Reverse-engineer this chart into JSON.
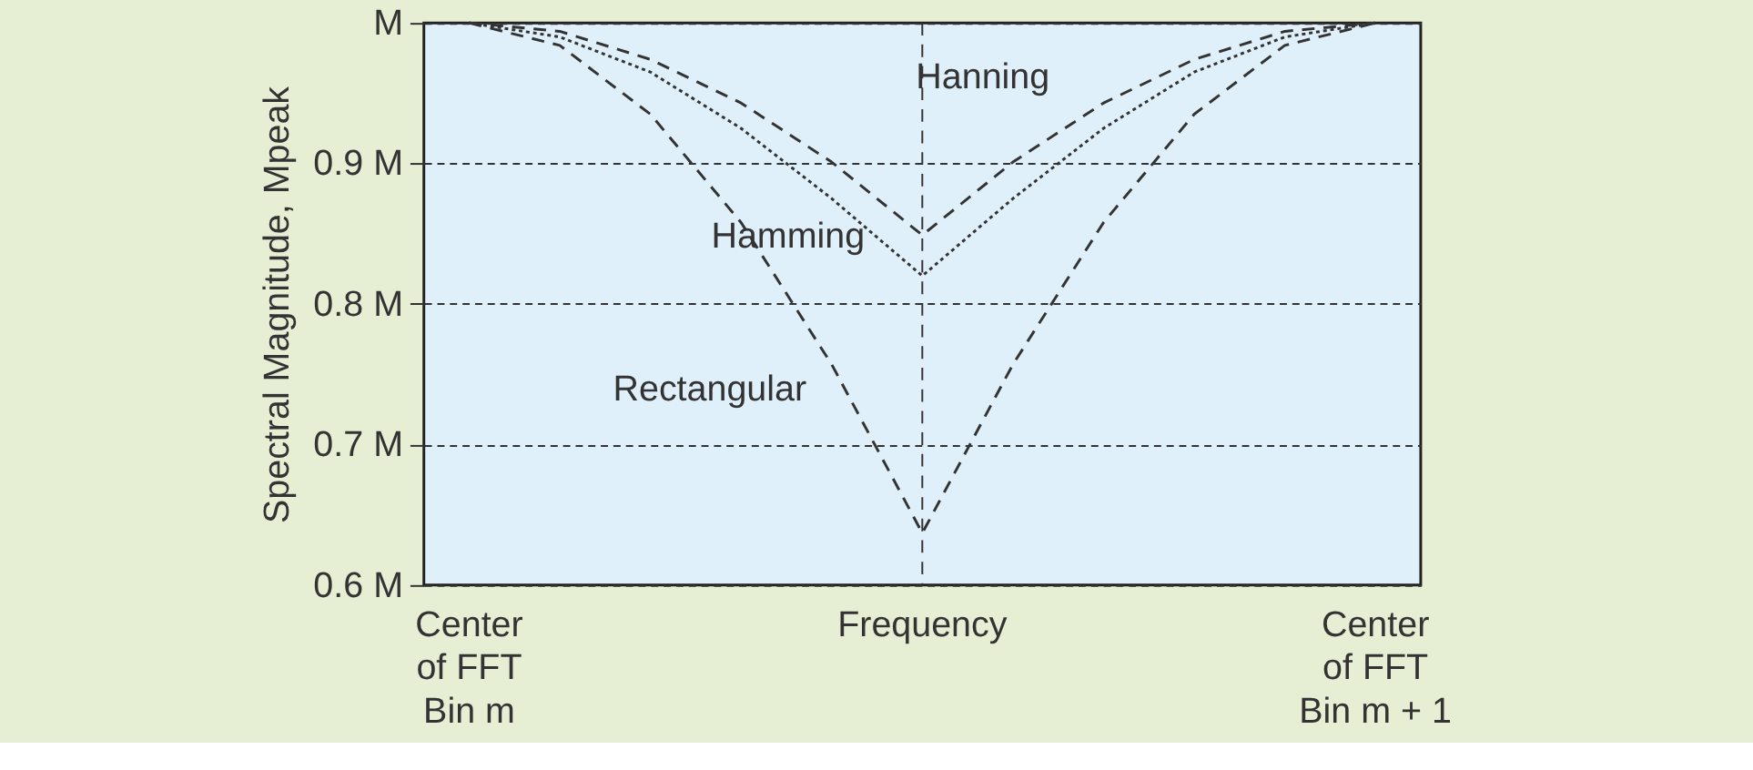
{
  "chart_data": {
    "type": "line",
    "ylabel": "Spectral Magnitude, Mpeak",
    "categories": [
      "Center\nof FFT\nBin m",
      null,
      null,
      null,
      null,
      "Frequency",
      null,
      null,
      null,
      null,
      "Center\nof FFT\nBin m + 1"
    ],
    "series": [
      {
        "name": "Rectangular",
        "color": "#333333",
        "line_style": "dashed",
        "values": [
          1,
          0.984,
          0.935,
          0.858,
          0.757,
          0.637,
          0.757,
          0.858,
          0.935,
          0.984,
          1
        ]
      },
      {
        "name": "Hamming",
        "color": "#333333",
        "line_style": "dotted",
        "values": [
          1,
          0.99,
          0.965,
          0.925,
          0.875,
          0.82,
          0.875,
          0.925,
          0.965,
          0.99,
          1
        ]
      },
      {
        "name": "Hanning",
        "color": "#333333",
        "line_style": "dashed",
        "values": [
          1,
          0.994,
          0.974,
          0.943,
          0.901,
          0.849,
          0.901,
          0.943,
          0.974,
          0.994,
          1
        ]
      }
    ],
    "ylim": [
      0.6,
      1.0
    ],
    "yticks": [
      {
        "value": 0.6,
        "label": "0.6 M"
      },
      {
        "value": 0.7,
        "label": "0.7 M"
      },
      {
        "value": 0.8,
        "label": "0.8 M"
      },
      {
        "value": 0.9,
        "label": "0.9 M"
      },
      {
        "value": 1.0,
        "label": "M"
      }
    ],
    "grid": "y",
    "ref_lines": [
      {
        "axis": "x",
        "value": "Frequency",
        "line_style": "dashed",
        "color": "#333333"
      }
    ]
  }
}
